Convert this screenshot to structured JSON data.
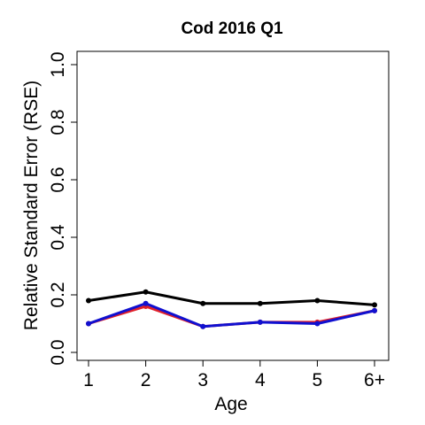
{
  "chart_data": {
    "type": "line",
    "title": "Cod 2016 Q1",
    "xlabel": "Age",
    "ylabel": "Relative Standard Error (RSE)",
    "categories": [
      "1",
      "2",
      "3",
      "4",
      "5",
      "6+"
    ],
    "ylim": [
      0,
      1.0
    ],
    "yticks": [
      "0.0",
      "0.2",
      "0.4",
      "0.6",
      "0.8",
      "1.0"
    ],
    "grid": false,
    "legend": "none",
    "series": [
      {
        "color": "#000000",
        "values": [
          0.18,
          0.21,
          0.17,
          0.17,
          0.18,
          0.165
        ]
      },
      {
        "color": "#e0202a",
        "values": [
          0.1,
          0.16,
          0.09,
          0.105,
          0.105,
          0.145
        ]
      },
      {
        "color": "#1010d0",
        "values": [
          0.1,
          0.17,
          0.09,
          0.105,
          0.1,
          0.145
        ]
      }
    ]
  }
}
